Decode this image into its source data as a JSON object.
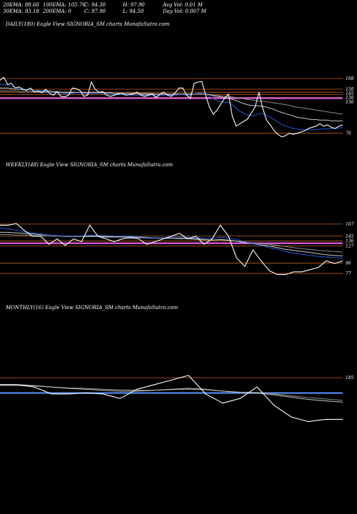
{
  "header": {
    "row1": [
      "20EMA: 88.68",
      "100EMA: 105.76",
      "C: 94.30",
      "H: 97.90",
      "Avg Vol: 0.01 M"
    ],
    "row2": [
      "30EMA: 93.18",
      "200EMA: 0",
      "C: 97.90",
      "L: 94.50",
      "Day Vol: 0.007 M"
    ]
  },
  "chart_data": [
    {
      "type": "line",
      "title": "DAILY(180) Eagle  View  SIGNORIA_SM charts MunafaSutra.com",
      "ticks": [
        "168",
        "150",
        "145",
        "136",
        "136",
        "76"
      ],
      "ylim": [
        60,
        180
      ],
      "series": [
        {
          "color": "#ffffff",
          "values": [
            165,
            170,
            158,
            160,
            152,
            154,
            150,
            148,
            152,
            145,
            146,
            144,
            150,
            143,
            140,
            146,
            138,
            137,
            140,
            152,
            151,
            148,
            138,
            140,
            162,
            150,
            145,
            146,
            140,
            138,
            140,
            142,
            143,
            140,
            141,
            142,
            145,
            140,
            138,
            140,
            142,
            136,
            142,
            145,
            140,
            138,
            144,
            152,
            152,
            140,
            135,
            160,
            162,
            163,
            140,
            120,
            108,
            115,
            125,
            135,
            142,
            105,
            88,
            92,
            96,
            100,
            110,
            120,
            145,
            118,
            98,
            90,
            80,
            74,
            70,
            72,
            76,
            74,
            76,
            78,
            80,
            84,
            86,
            88,
            92,
            88,
            90,
            86,
            84,
            88,
            90
          ]
        },
        {
          "color": "#1f5bd8",
          "values": [
            158,
            158,
            157,
            155,
            153,
            151,
            150,
            149,
            149,
            148,
            147,
            146,
            146,
            145,
            144,
            144,
            143,
            142,
            142,
            143,
            144,
            144,
            143,
            142,
            143,
            143,
            143,
            143,
            142,
            141,
            141,
            141,
            141,
            141,
            140,
            140,
            140,
            140,
            140,
            140,
            140,
            139,
            139,
            140,
            140,
            140,
            140,
            141,
            141,
            140,
            140,
            142,
            143,
            143,
            142,
            138,
            134,
            131,
            129,
            128,
            128,
            124,
            118,
            113,
            110,
            107,
            106,
            106,
            109,
            109,
            106,
            103,
            99,
            95,
            91,
            88,
            86,
            84,
            83,
            82,
            82,
            82,
            82,
            82,
            83,
            83,
            84,
            84,
            84,
            85,
            86
          ]
        },
        {
          "color": "#c9c9c9",
          "values": [
            152,
            152,
            152,
            151,
            150,
            150,
            149,
            149,
            149,
            148,
            148,
            147,
            147,
            147,
            146,
            146,
            145,
            145,
            145,
            145,
            145,
            145,
            145,
            144,
            145,
            145,
            145,
            144,
            144,
            144,
            143,
            143,
            143,
            143,
            143,
            143,
            143,
            142,
            142,
            142,
            142,
            142,
            142,
            142,
            142,
            142,
            142,
            142,
            142,
            142,
            142,
            142,
            143,
            143,
            142,
            141,
            139,
            138,
            137,
            136,
            135,
            133,
            131,
            128,
            126,
            124,
            123,
            122,
            122,
            121,
            120,
            118,
            116,
            113,
            111,
            109,
            107,
            105,
            103,
            102,
            101,
            100,
            99,
            99,
            98,
            98,
            98,
            97,
            97,
            97,
            97
          ]
        },
        {
          "color": "#8a8a8a",
          "values": [
            147,
            147,
            147,
            147,
            147,
            146,
            146,
            146,
            146,
            146,
            146,
            145,
            145,
            145,
            145,
            145,
            145,
            144,
            144,
            144,
            144,
            144,
            144,
            144,
            144,
            144,
            144,
            144,
            144,
            143,
            143,
            143,
            143,
            143,
            143,
            143,
            143,
            143,
            143,
            143,
            143,
            142,
            142,
            142,
            142,
            142,
            142,
            142,
            142,
            142,
            142,
            142,
            142,
            142,
            142,
            141,
            140,
            140,
            139,
            138,
            138,
            137,
            136,
            135,
            134,
            133,
            132,
            131,
            130,
            130,
            129,
            128,
            127,
            126,
            125,
            124,
            123,
            121,
            120,
            119,
            118,
            117,
            116,
            115,
            114,
            113,
            112,
            111,
            110,
            109,
            108
          ]
        }
      ],
      "hlines": [
        {
          "value": 168,
          "color": "#c0601a"
        },
        {
          "value": 150,
          "color": "#c0601a"
        },
        {
          "value": 145,
          "color": "#c0601a"
        },
        {
          "value": 141,
          "color": "#c0601a"
        },
        {
          "value": 136,
          "color": "#c0601a"
        },
        {
          "value": 135,
          "color": "#e05ce0"
        },
        {
          "value": 76,
          "color": "#c0601a"
        }
      ]
    },
    {
      "type": "line",
      "title": "WEEKLY(48) Eagle  View  SIGNORIA_SM charts MunafaSutra.com",
      "ticks": [
        "167",
        "145",
        "136",
        "127",
        "96",
        "77"
      ],
      "ylim": [
        55,
        185
      ],
      "series": [
        {
          "color": "#ffffff",
          "values": [
            165,
            165,
            168,
            155,
            145,
            145,
            130,
            140,
            128,
            140,
            135,
            165,
            145,
            140,
            135,
            140,
            142,
            140,
            130,
            135,
            140,
            145,
            150,
            140,
            145,
            130,
            140,
            165,
            145,
            105,
            90,
            120,
            100,
            82,
            75,
            75,
            80,
            80,
            84,
            88,
            100,
            95,
            100
          ]
        },
        {
          "color": "#1f5bd8",
          "values": [
            160,
            158,
            156,
            153,
            151,
            149,
            147,
            146,
            145,
            145,
            145,
            147,
            146,
            146,
            145,
            145,
            145,
            144,
            143,
            142,
            142,
            143,
            144,
            143,
            142,
            141,
            141,
            143,
            142,
            139,
            135,
            131,
            128,
            124,
            121,
            117,
            114,
            112,
            110,
            108,
            107,
            106,
            105
          ]
        },
        {
          "color": "#c9c9c9",
          "values": [
            152,
            152,
            151,
            150,
            149,
            148,
            147,
            146,
            145,
            145,
            145,
            145,
            145,
            144,
            144,
            144,
            144,
            143,
            142,
            142,
            141,
            141,
            141,
            141,
            140,
            139,
            138,
            139,
            138,
            136,
            133,
            131,
            129,
            127,
            124,
            121,
            119,
            117,
            115,
            113,
            111,
            110,
            109
          ]
        },
        {
          "color": "#8a8a8a",
          "values": [
            148,
            148,
            147,
            147,
            146,
            146,
            145,
            145,
            144,
            144,
            144,
            144,
            144,
            143,
            143,
            143,
            143,
            142,
            142,
            141,
            141,
            141,
            140,
            140,
            139,
            138,
            138,
            138,
            137,
            136,
            134,
            133,
            131,
            130,
            128,
            126,
            124,
            122,
            121,
            119,
            118,
            117,
            116
          ]
        }
      ],
      "hlines": [
        {
          "value": 167,
          "color": "#c0601a"
        },
        {
          "value": 145,
          "color": "#c0601a"
        },
        {
          "value": 136,
          "color": "#c0601a"
        },
        {
          "value": 132,
          "color": "#e05ce0"
        },
        {
          "value": 127,
          "color": "#c0601a"
        },
        {
          "value": 96,
          "color": "#c0601a"
        },
        {
          "value": 77,
          "color": "#c0601a"
        }
      ]
    },
    {
      "type": "line",
      "title": "MONTHLY(16) Eagle  View  SIGNORIA_SM charts MunafaSutra.com",
      "ticks": [
        "185"
      ],
      "ylim": [
        60,
        230
      ],
      "series": [
        {
          "color": "#ffffff",
          "values": [
            170,
            170,
            165,
            150,
            150,
            152,
            150,
            140,
            160,
            170,
            180,
            190,
            150,
            130,
            140,
            165,
            125,
            100,
            90,
            95,
            95
          ]
        },
        {
          "color": "#c9c9c9",
          "values": [
            170,
            170,
            168,
            165,
            162,
            160,
            158,
            156,
            156,
            158,
            160,
            162,
            160,
            156,
            153,
            152,
            148,
            143,
            138,
            135,
            132
          ]
        },
        {
          "color": "#8a8a8a",
          "values": [
            168,
            168,
            167,
            165,
            163,
            162,
            160,
            159,
            158,
            158,
            159,
            160,
            159,
            156,
            154,
            153,
            150,
            146,
            142,
            139,
            136
          ]
        }
      ],
      "hlines": [
        {
          "value": 185,
          "color": "#c0601a"
        },
        {
          "value": 152,
          "color": "#4f86e6"
        }
      ]
    }
  ]
}
